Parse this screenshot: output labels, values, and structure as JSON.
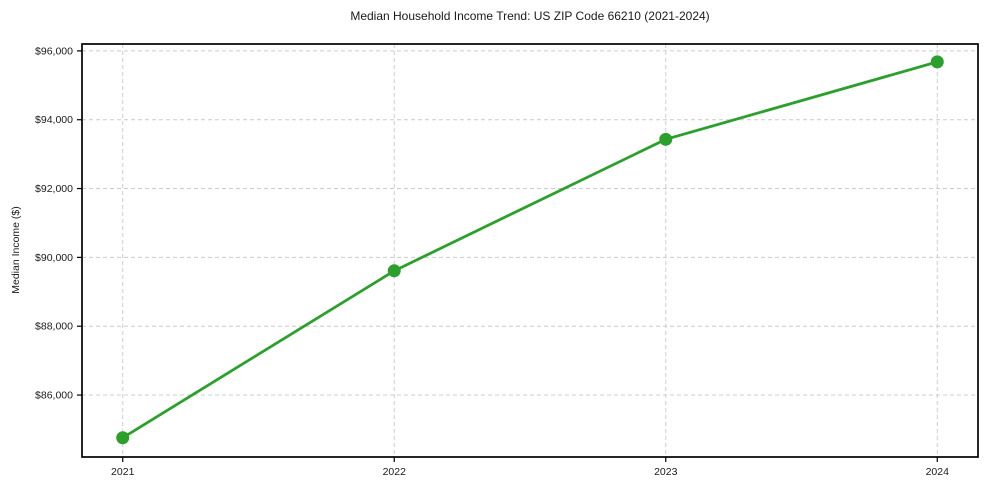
{
  "figure": {
    "background": "#ffffff"
  },
  "chart_data": {
    "type": "line",
    "title": "Median Household Income Trend: US ZIP Code 66210 (2021-2024)",
    "xlabel": "",
    "ylabel": "Median Income ($)",
    "x": [
      2021,
      2022,
      2023,
      2024
    ],
    "values": [
      84760,
      89610,
      93430,
      95680
    ],
    "xticks": {
      "values": [
        2021,
        2022,
        2023,
        2024
      ],
      "labels": [
        "2021",
        "2022",
        "2023",
        "2024"
      ]
    },
    "yticks": {
      "values": [
        86000,
        88000,
        90000,
        92000,
        94000,
        96000
      ],
      "labels": [
        "$86,000",
        "$88,000",
        "$90,000",
        "$92,000",
        "$94,000",
        "$96,000"
      ]
    },
    "xlim": [
      2020.85,
      2024.15
    ],
    "ylim": [
      84200,
      96200
    ],
    "grid": true,
    "grid_style": "dashed",
    "legend": "none",
    "marker": "circle",
    "colors": {
      "line": "#2ca02c",
      "marker": "#2ca02c",
      "grid": "#cccccc",
      "spine": "#000000",
      "tick": "#000000",
      "text": "#1a1a1a",
      "background": "#ffffff"
    }
  }
}
